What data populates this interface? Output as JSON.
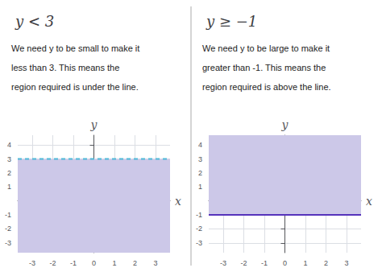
{
  "chart_data": [
    {
      "type": "line",
      "title": "y < 3",
      "annotations": [
        "We need y to be small to make it",
        "less than 3. This means the",
        "region required is under the line."
      ],
      "xlabel": "x",
      "ylabel": "y",
      "x": [
        -3.7,
        3.7
      ],
      "series": [
        {
          "type": "band",
          "color": "#ccc8e8",
          "low": -3.7,
          "high": 3
        },
        {
          "type": "line",
          "color": "#4db8d8",
          "line_style": "dashed",
          "values": [
            3,
            3
          ]
        }
      ],
      "xlim": [
        -3.7,
        3.7
      ],
      "ylim": [
        -3.7,
        4.7
      ],
      "xticks": [
        -3,
        -2,
        -1,
        0,
        1,
        2,
        3
      ],
      "yticks": [
        -3,
        -2,
        -1,
        1,
        2,
        3,
        4
      ],
      "grid": true
    },
    {
      "type": "line",
      "title": "y ≥ −1",
      "annotations": [
        "We need y to be large to make it",
        "greater than -1. This means the",
        "region required is above the line."
      ],
      "xlabel": "x",
      "ylabel": "y",
      "x": [
        -3.7,
        3.7
      ],
      "series": [
        {
          "type": "band",
          "color": "#ccc8e8",
          "low": -1,
          "high": 4.7
        },
        {
          "type": "line",
          "color": "#5533bb",
          "line_style": "solid",
          "values": [
            -1,
            -1
          ]
        }
      ],
      "xlim": [
        -3.7,
        3.7
      ],
      "ylim": [
        -3.7,
        4.7
      ],
      "xticks": [
        -3,
        -2,
        -1,
        0,
        1,
        2,
        3
      ],
      "yticks": [
        -3,
        -2,
        -1,
        1,
        2,
        3,
        4
      ],
      "grid": true
    }
  ]
}
